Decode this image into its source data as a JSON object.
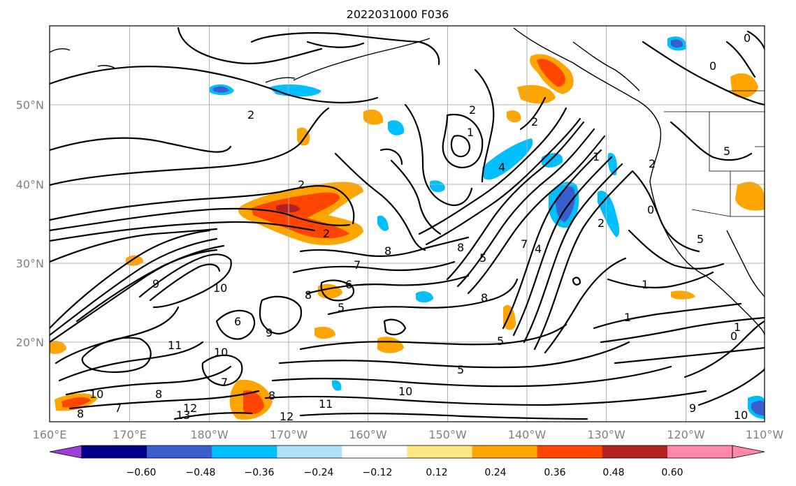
{
  "title": "2022031000 F036",
  "axes": {
    "x_ticks": [
      "160°E",
      "170°E",
      "180°W",
      "170°W",
      "160°W",
      "150°W",
      "140°W",
      "130°W",
      "120°W",
      "110°W"
    ],
    "y_ticks": [
      "50°N",
      "40°N",
      "30°N",
      "20°N"
    ]
  },
  "colorbar": {
    "ticks": [
      "−0.60",
      "−0.48",
      "−0.36",
      "−0.24",
      "−0.12",
      "0.12",
      "0.24",
      "0.36",
      "0.48",
      "0.60"
    ],
    "colors": [
      "#9b3fd6",
      "#00008b",
      "#3a5fcd",
      "#00bfff",
      "#b0e2ff",
      "#ffffff",
      "#ffe680",
      "#ffa500",
      "#ff4500",
      "#b22222",
      "#ff88aa",
      "#ff88aa"
    ]
  },
  "contour_labels": [
    "2",
    "2",
    "1",
    "2",
    "4",
    "2",
    "2",
    "1",
    "7",
    "8",
    "8",
    "5",
    "7",
    "4",
    "8",
    "2",
    "1",
    "6",
    "0",
    "2",
    "5",
    "1",
    "1",
    "0",
    "9",
    "10",
    "6",
    "5",
    "8",
    "11",
    "10",
    "8",
    "7",
    "9",
    "10",
    "7",
    "8",
    "12",
    "13",
    "11",
    "12",
    "10",
    "5",
    "5",
    "8",
    "0",
    "5",
    "0",
    "9",
    "10"
  ],
  "fills": {
    "blue_light": "#b0e2ff",
    "blue": "#00bfff",
    "blue_dark": "#3a5fcd",
    "yellow": "#ffe680",
    "orange": "#ffa500",
    "red": "#ff4500",
    "darkred": "#b22222"
  }
}
